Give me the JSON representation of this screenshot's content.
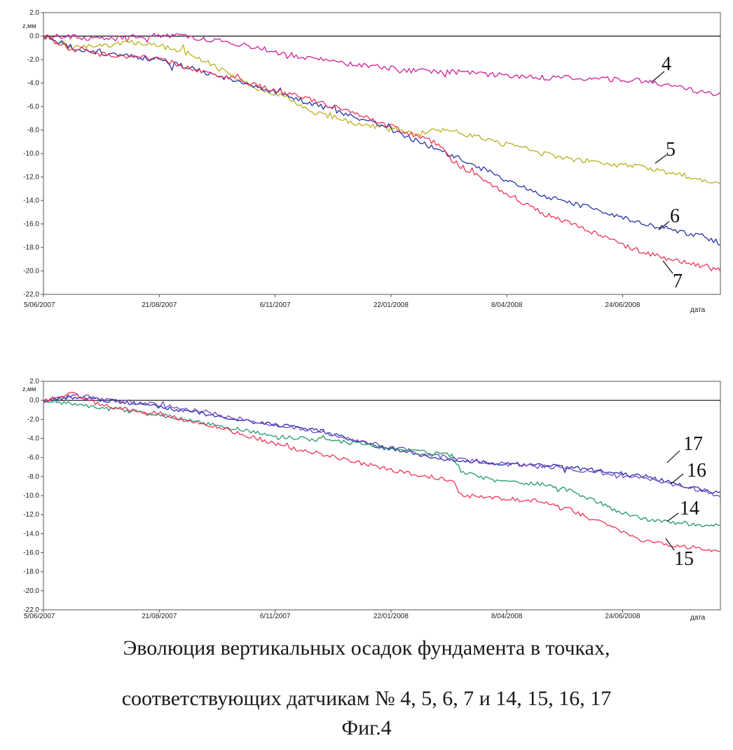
{
  "chart_data": [
    {
      "type": "line",
      "ylabel": "z,мм",
      "xlabel": "дата",
      "ylim": [
        -22.0,
        2.0
      ],
      "yticks": [
        "2.0",
        "0.0",
        "-2.0",
        "-4.0",
        "-6.0",
        "-8.0",
        "-10.0",
        "-12.0",
        "-14.0",
        "-16.0",
        "-18.0",
        "-20.0",
        "-22.0"
      ],
      "xticks": [
        "5/06/2007",
        "21/08/2007",
        "6/11/2007",
        "22/01/2008",
        "8/04/2008",
        "24/06/2008"
      ],
      "x_range_days": [
        0,
        450
      ],
      "series": [
        {
          "name": "4",
          "color": "#cc2299",
          "points": [
            [
              0,
              0
            ],
            [
              40,
              -0.2
            ],
            [
              80,
              0.1
            ],
            [
              120,
              -0.4
            ],
            [
              160,
              -1.5
            ],
            [
              200,
              -2.3
            ],
            [
              240,
              -2.9
            ],
            [
              280,
              -3.1
            ],
            [
              320,
              -3.5
            ],
            [
              360,
              -3.6
            ],
            [
              400,
              -3.8
            ],
            [
              450,
              -5.0
            ]
          ]
        },
        {
          "name": "5",
          "color": "#b8b020",
          "points": [
            [
              0,
              0
            ],
            [
              20,
              -1.0
            ],
            [
              40,
              -0.8
            ],
            [
              60,
              -0.5
            ],
            [
              80,
              -0.9
            ],
            [
              100,
              -1.6
            ],
            [
              120,
              -3.0
            ],
            [
              140,
              -4.4
            ],
            [
              160,
              -5.1
            ],
            [
              180,
              -6.5
            ],
            [
              210,
              -7.5
            ],
            [
              250,
              -8.2
            ],
            [
              270,
              -8.0
            ],
            [
              300,
              -9.0
            ],
            [
              350,
              -10.5
            ],
            [
              400,
              -11.2
            ],
            [
              450,
              -12.5
            ]
          ]
        },
        {
          "name": "6",
          "color": "#2233aa",
          "points": [
            [
              0,
              0
            ],
            [
              20,
              -1.0
            ],
            [
              40,
              -1.5
            ],
            [
              75,
              -2.0
            ],
            [
              100,
              -2.8
            ],
            [
              140,
              -4.3
            ],
            [
              180,
              -5.8
            ],
            [
              220,
              -7.4
            ],
            [
              250,
              -9.0
            ],
            [
              265,
              -9.8
            ],
            [
              300,
              -11.8
            ],
            [
              330,
              -13.5
            ],
            [
              360,
              -14.5
            ],
            [
              400,
              -16.0
            ],
            [
              420,
              -16.5
            ],
            [
              450,
              -17.6
            ]
          ]
        },
        {
          "name": "7",
          "color": "#ee3355",
          "points": [
            [
              0,
              0
            ],
            [
              20,
              -1.2
            ],
            [
              40,
              -1.6
            ],
            [
              75,
              -1.9
            ],
            [
              100,
              -2.8
            ],
            [
              140,
              -4.1
            ],
            [
              180,
              -5.5
            ],
            [
              220,
              -7.2
            ],
            [
              250,
              -8.6
            ],
            [
              265,
              -9.3
            ],
            [
              270,
              -10.5
            ],
            [
              300,
              -12.8
            ],
            [
              330,
              -15.0
            ],
            [
              360,
              -16.5
            ],
            [
              400,
              -18.5
            ],
            [
              450,
              -20.0
            ]
          ]
        }
      ],
      "callouts": [
        "4",
        "5",
        "6",
        "7"
      ]
    },
    {
      "type": "line",
      "ylabel": "z,мм",
      "xlabel": "дата",
      "ylim": [
        -22.0,
        2.0
      ],
      "yticks": [
        "2.0",
        "0.0",
        "-2.0",
        "-4.0",
        "-6.0",
        "-8.0",
        "-10.0",
        "-12.0",
        "-14.0",
        "-16.0",
        "-18.0",
        "-20.0",
        "-22.0"
      ],
      "xticks": [
        "5/06/2007",
        "21/08/2007",
        "6/11/2007",
        "22/01/2008",
        "8/04/2008",
        "24/06/2008"
      ],
      "x_range_days": [
        0,
        450
      ],
      "series": [
        {
          "name": "17",
          "color": "#2233aa",
          "points": [
            [
              0,
              0
            ],
            [
              20,
              0.3
            ],
            [
              60,
              -0.3
            ],
            [
              100,
              -1.2
            ],
            [
              140,
              -2.3
            ],
            [
              180,
              -3.0
            ],
            [
              220,
              -4.8
            ],
            [
              260,
              -6.0
            ],
            [
              280,
              -6.4
            ],
            [
              300,
              -6.6
            ],
            [
              350,
              -7.0
            ],
            [
              400,
              -8.0
            ],
            [
              450,
              -9.8
            ]
          ]
        },
        {
          "name": "16",
          "color": "#7744bb",
          "points": [
            [
              0,
              0
            ],
            [
              20,
              0.5
            ],
            [
              60,
              -0.2
            ],
            [
              100,
              -1.0
            ],
            [
              140,
              -2.2
            ],
            [
              180,
              -3.2
            ],
            [
              220,
              -4.6
            ],
            [
              260,
              -5.8
            ],
            [
              280,
              -6.2
            ],
            [
              300,
              -6.6
            ],
            [
              350,
              -7.2
            ],
            [
              400,
              -8.2
            ],
            [
              450,
              -10.0
            ]
          ]
        },
        {
          "name": "14",
          "color": "#229966",
          "points": [
            [
              0,
              0
            ],
            [
              40,
              -0.8
            ],
            [
              80,
              -1.6
            ],
            [
              120,
              -2.8
            ],
            [
              160,
              -3.8
            ],
            [
              200,
              -4.4
            ],
            [
              240,
              -5.2
            ],
            [
              272,
              -5.8
            ],
            [
              278,
              -7.5
            ],
            [
              300,
              -8.5
            ],
            [
              330,
              -8.8
            ],
            [
              350,
              -9.5
            ],
            [
              380,
              -11.5
            ],
            [
              400,
              -12.5
            ],
            [
              450,
              -13.3
            ]
          ]
        },
        {
          "name": "15",
          "color": "#ee3355",
          "points": [
            [
              0,
              0
            ],
            [
              20,
              0.7
            ],
            [
              40,
              -0.6
            ],
            [
              80,
              -1.5
            ],
            [
              120,
              -3.0
            ],
            [
              160,
              -4.8
            ],
            [
              200,
              -6.2
            ],
            [
              240,
              -7.6
            ],
            [
              272,
              -8.4
            ],
            [
              278,
              -10.0
            ],
            [
              300,
              -10.2
            ],
            [
              330,
              -10.6
            ],
            [
              350,
              -11.5
            ],
            [
              380,
              -13.5
            ],
            [
              400,
              -14.8
            ],
            [
              450,
              -15.8
            ]
          ]
        }
      ],
      "callouts": [
        "17",
        "16",
        "14",
        "15"
      ]
    }
  ],
  "caption": {
    "line1": "Эволюция вертикальных осадок фундамента в точках,",
    "line2": "соответствующих датчикам № 4, 5, 6, 7 и 14, 15, 16, 17",
    "figure": "Фиг.4"
  }
}
